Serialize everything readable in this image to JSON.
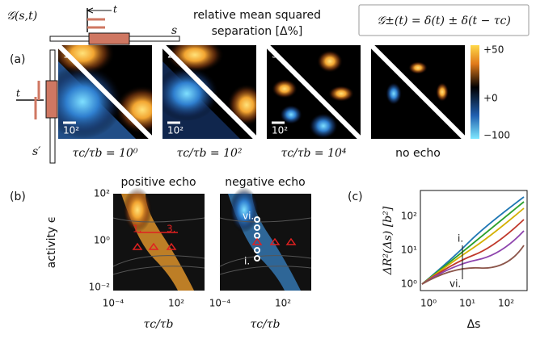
{
  "header": {
    "schematic_label": "𝒢(s,t)",
    "s": "s",
    "t": "t",
    "title_line1": "relative mean squared",
    "title_line2": "separation [Δ%]",
    "formula": "𝒢±(t) = δ(t) ± δ(t − τc)"
  },
  "panel_a": {
    "label": "(a)",
    "t": "t",
    "s_prime": "s′",
    "panels": [
      {
        "number": "1.",
        "scale": "10²",
        "caption": "τc/τb = 10⁰"
      },
      {
        "number": "2.",
        "scale": "10²",
        "caption": "τc/τb = 10²"
      },
      {
        "number": "3.",
        "scale": "10²",
        "caption": "τc/τb = 10⁴"
      },
      {
        "caption": "no echo"
      }
    ],
    "colorbar_ticks": [
      "+50",
      "+0",
      "−100"
    ]
  },
  "panel_b": {
    "label": "(b)",
    "ylabel": "activity ϵ",
    "yticks": [
      "10²",
      "10⁰",
      "10⁻²"
    ],
    "xticks": [
      "10⁻⁴",
      "10²"
    ],
    "xlabel": "τc/τb",
    "plots": [
      {
        "title": "positive echo",
        "markers": [
          "1.",
          "3."
        ]
      },
      {
        "title": "negative echo",
        "markers": [
          "vi.",
          "i."
        ]
      }
    ]
  },
  "panel_c": {
    "label": "(c)",
    "ylabel": "ΔR²(Δs) [b²]",
    "yticks": [
      "10²",
      "10¹",
      "10⁰"
    ],
    "xticks": [
      "10⁰",
      "10¹",
      "10²"
    ],
    "xlabel": "Δs",
    "markers": [
      "i.",
      "vi."
    ]
  }
}
